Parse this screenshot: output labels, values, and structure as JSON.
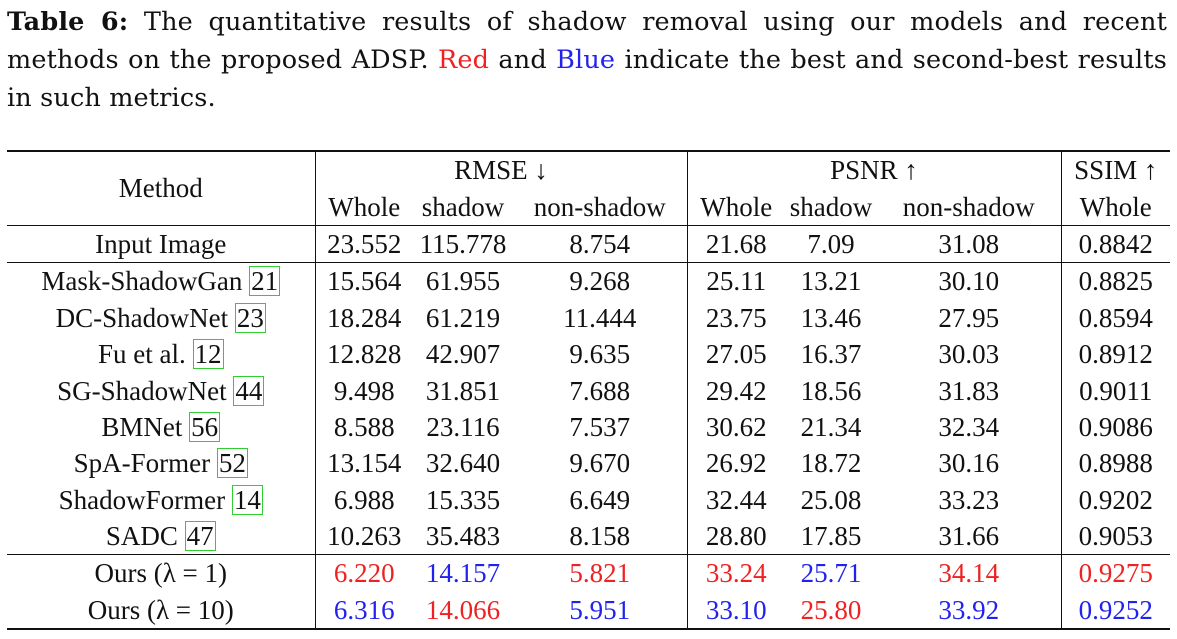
{
  "caption": {
    "label": "Table 6:",
    "text_1": " The quantitative results of shadow removal using our models and recent methods on the proposed ADSP. ",
    "red_word": "Red",
    "text_2": " and ",
    "blue_word": "Blue",
    "text_3": " indicate the best and second-best results in such metrics."
  },
  "colors": {
    "best": "#ee2222",
    "second": "#2222ee",
    "ref_box": "#33cc33"
  },
  "table": {
    "header": {
      "method": "Method",
      "rmse": "RMSE ↓",
      "psnr": "PSNR ↑",
      "ssim": "SSIM ↑",
      "sub": [
        "Whole",
        "shadow",
        "non-shadow",
        "Whole",
        "shadow",
        "non-shadow",
        "Whole"
      ]
    },
    "input_row": {
      "method": "Input Image",
      "values": [
        "23.552",
        "115.778",
        "8.754",
        "21.68",
        "7.09",
        "31.08",
        "0.8842"
      ]
    },
    "rows": [
      {
        "method": "Mask-ShadowGan",
        "ref": "21",
        "values": [
          "15.564",
          "61.955",
          "9.268",
          "25.11",
          "13.21",
          "30.10",
          "0.8825"
        ]
      },
      {
        "method": "DC-ShadowNet",
        "ref": "23",
        "values": [
          "18.284",
          "61.219",
          "11.444",
          "23.75",
          "13.46",
          "27.95",
          "0.8594"
        ]
      },
      {
        "method": "Fu et al.",
        "ref": "12",
        "values": [
          "12.828",
          "42.907",
          "9.635",
          "27.05",
          "16.37",
          "30.03",
          "0.8912"
        ]
      },
      {
        "method": "SG-ShadowNet",
        "ref": "44",
        "values": [
          "9.498",
          "31.851",
          "7.688",
          "29.42",
          "18.56",
          "31.83",
          "0.9011"
        ]
      },
      {
        "method": "BMNet",
        "ref": "56",
        "values": [
          "8.588",
          "23.116",
          "7.537",
          "30.62",
          "21.34",
          "32.34",
          "0.9086"
        ]
      },
      {
        "method": "SpA-Former",
        "ref": "52",
        "values": [
          "13.154",
          "32.640",
          "9.670",
          "26.92",
          "18.72",
          "30.16",
          "0.8988"
        ]
      },
      {
        "method": "ShadowFormer",
        "ref": "14",
        "values": [
          "6.988",
          "15.335",
          "6.649",
          "32.44",
          "25.08",
          "33.23",
          "0.9202"
        ]
      },
      {
        "method": "SADC",
        "ref": "47",
        "values": [
          "10.263",
          "35.483",
          "8.158",
          "28.80",
          "17.85",
          "31.66",
          "0.9053"
        ]
      }
    ],
    "ours": [
      {
        "method": "Ours (λ = 1)",
        "values": [
          "6.220",
          "14.157",
          "5.821",
          "33.24",
          "25.71",
          "34.14",
          "0.9275"
        ],
        "marks": [
          "best",
          "second",
          "best",
          "best",
          "second",
          "best",
          "best"
        ]
      },
      {
        "method": "Ours (λ = 10)",
        "values": [
          "6.316",
          "14.066",
          "5.951",
          "33.10",
          "25.80",
          "33.92",
          "0.9252"
        ],
        "marks": [
          "second",
          "best",
          "second",
          "second",
          "best",
          "second",
          "second"
        ]
      }
    ]
  }
}
